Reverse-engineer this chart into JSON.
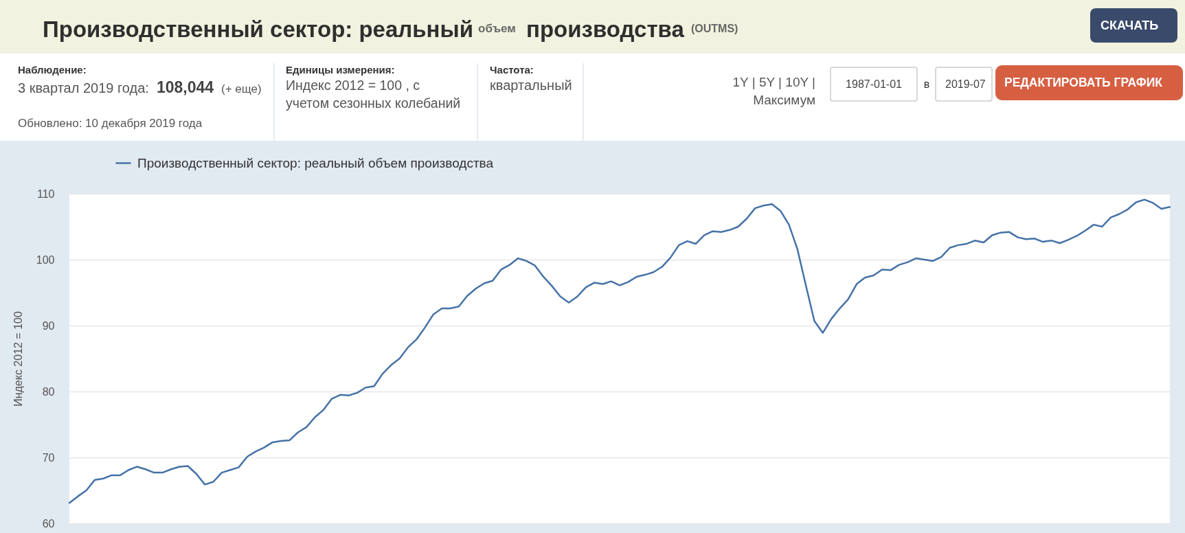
{
  "chart_data": {
    "type": "line",
    "title": "Производственный сектор: реальный объем производства (OUTMS)",
    "ylabel": "Индекс 2012 = 100",
    "categories": [
      null,
      null,
      null,
      null,
      null,
      null,
      null,
      null,
      null,
      null,
      null,
      null,
      null,
      null,
      null,
      null,
      null,
      null,
      null,
      null,
      null,
      null,
      null,
      null,
      null,
      null,
      null,
      null,
      null,
      null,
      null,
      null,
      null,
      null,
      null,
      null,
      null,
      null,
      null,
      null,
      null,
      null,
      null,
      null,
      null,
      null,
      null,
      null,
      null,
      null,
      null,
      null,
      null,
      null,
      null,
      null,
      null,
      null,
      null,
      null,
      null,
      null,
      null,
      null,
      null,
      null,
      null,
      null,
      null,
      null,
      null,
      null,
      null,
      null,
      null,
      null,
      null,
      null,
      null,
      null,
      null,
      null,
      null,
      null,
      null,
      null,
      null,
      null,
      null,
      null,
      null,
      null,
      null,
      null,
      null,
      null,
      null,
      null,
      null,
      null,
      null,
      null,
      null,
      null,
      null,
      null,
      null,
      null,
      null,
      null,
      null,
      null,
      null,
      null,
      null,
      null,
      null,
      null,
      null,
      null,
      null,
      null,
      null,
      null,
      null,
      null,
      null,
      null,
      null,
      null,
      null
    ],
    "series": [
      {
        "name": "Производственный сектор: реальный объем производства",
        "color": "#4572a7",
        "values": [
          63.1,
          64.1,
          65.0,
          66.6,
          66.8,
          67.3,
          67.3,
          68.1,
          68.6,
          68.2,
          67.7,
          67.7,
          68.2,
          68.6,
          68.7,
          67.5,
          65.9,
          66.3,
          67.7,
          68.1,
          68.5,
          70.1,
          70.9,
          71.5,
          72.3,
          72.5,
          72.6,
          73.8,
          74.6,
          76.1,
          77.2,
          78.9,
          79.5,
          79.4,
          79.8,
          80.6,
          80.8,
          82.7,
          84.0,
          85.0,
          86.7,
          87.9,
          89.7,
          91.7,
          92.6,
          92.6,
          92.9,
          94.5,
          95.6,
          96.4,
          96.8,
          98.5,
          99.2,
          100.2,
          99.8,
          99.1,
          97.4,
          96.0,
          94.4,
          93.5,
          94.4,
          95.8,
          96.5,
          96.3,
          96.7,
          96.1,
          96.6,
          97.4,
          97.7,
          98.1,
          98.9,
          100.3,
          102.2,
          102.8,
          102.4,
          103.7,
          104.3,
          104.2,
          104.5,
          105.0,
          106.2,
          107.8,
          108.2,
          108.4,
          107.4,
          105.3,
          101.6,
          96.1,
          90.7,
          88.9,
          91.0,
          92.6,
          94.0,
          96.3,
          97.3,
          97.6,
          98.5,
          98.4,
          99.2,
          99.6,
          100.2,
          100.0,
          99.8,
          100.4,
          101.8,
          102.2,
          102.4,
          102.9,
          102.6,
          103.7,
          104.1,
          104.2,
          103.4,
          103.1,
          103.2,
          102.7,
          102.9,
          102.5,
          103.0,
          103.6,
          104.4,
          105.3,
          105.0,
          106.4,
          106.9,
          107.6,
          108.7,
          109.1,
          108.6,
          107.7,
          108.0
        ]
      }
    ],
    "ylim": [
      60,
      110
    ],
    "yticks": [
      60,
      70,
      80,
      90,
      100,
      110
    ],
    "grid": "y",
    "legend": "top left",
    "tick_labels": "y",
    "annotations": [
      "СКАЧАТЬ",
      "Наблюдение:",
      "3 квартал 2019 года:",
      "108,044",
      "(+ еще)",
      "Обновлено: 10 декабря 2019 года",
      "Единицы измерения:",
      "Индекс 2012 = 100 , с учетом сезонных колебаний",
      "Частота:",
      "квартальный",
      "1Y | 5Y | 10Y | Максимум",
      "1987-01-01",
      "в",
      "2019-07",
      "РЕДАКТИРОВАТЬ ГРАФИК"
    ]
  }
}
